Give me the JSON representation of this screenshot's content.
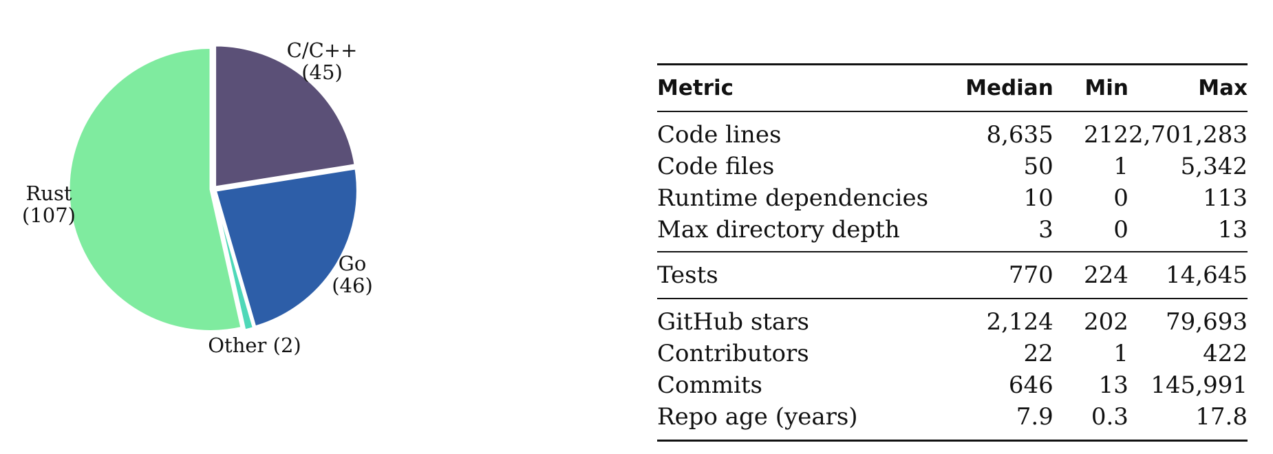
{
  "chart_data": {
    "type": "pie",
    "slices": [
      {
        "label": "C/C++",
        "count": "(45)",
        "value": 45,
        "color": "#5b5077"
      },
      {
        "label": "Go",
        "count": "(46)",
        "value": 46,
        "color": "#2d5ea8"
      },
      {
        "label": "Other (2)",
        "count": "",
        "value": 2,
        "color": "#4fd8b8"
      },
      {
        "label": "Rust",
        "count": "(107)",
        "value": 107,
        "color": "#7feb9f"
      }
    ],
    "start_angle_deg": 0,
    "direction": "clockwise",
    "separator_color": "#ffffff"
  },
  "table": {
    "headers": {
      "metric": "Metric",
      "median": "Median",
      "min": "Min",
      "max": "Max"
    },
    "group_a": [
      {
        "metric": "Code lines",
        "median": "8,635",
        "min": "212",
        "max": "2,701,283"
      },
      {
        "metric": "Code files",
        "median": "50",
        "min": "1",
        "max": "5,342"
      },
      {
        "metric": "Runtime dependencies",
        "median": "10",
        "min": "0",
        "max": "113"
      },
      {
        "metric": "Max directory depth",
        "median": "3",
        "min": "0",
        "max": "13"
      }
    ],
    "group_b": [
      {
        "metric": "Tests",
        "median": "770",
        "min": "224",
        "max": "14,645"
      }
    ],
    "group_c": [
      {
        "metric": "GitHub stars",
        "median": "2,124",
        "min": "202",
        "max": "79,693"
      },
      {
        "metric": "Contributors",
        "median": "22",
        "min": "1",
        "max": "422"
      },
      {
        "metric": "Commits",
        "median": "646",
        "min": "13",
        "max": "145,991"
      },
      {
        "metric": "Repo age (years)",
        "median": "7.9",
        "min": "0.3",
        "max": "17.8"
      }
    ]
  }
}
